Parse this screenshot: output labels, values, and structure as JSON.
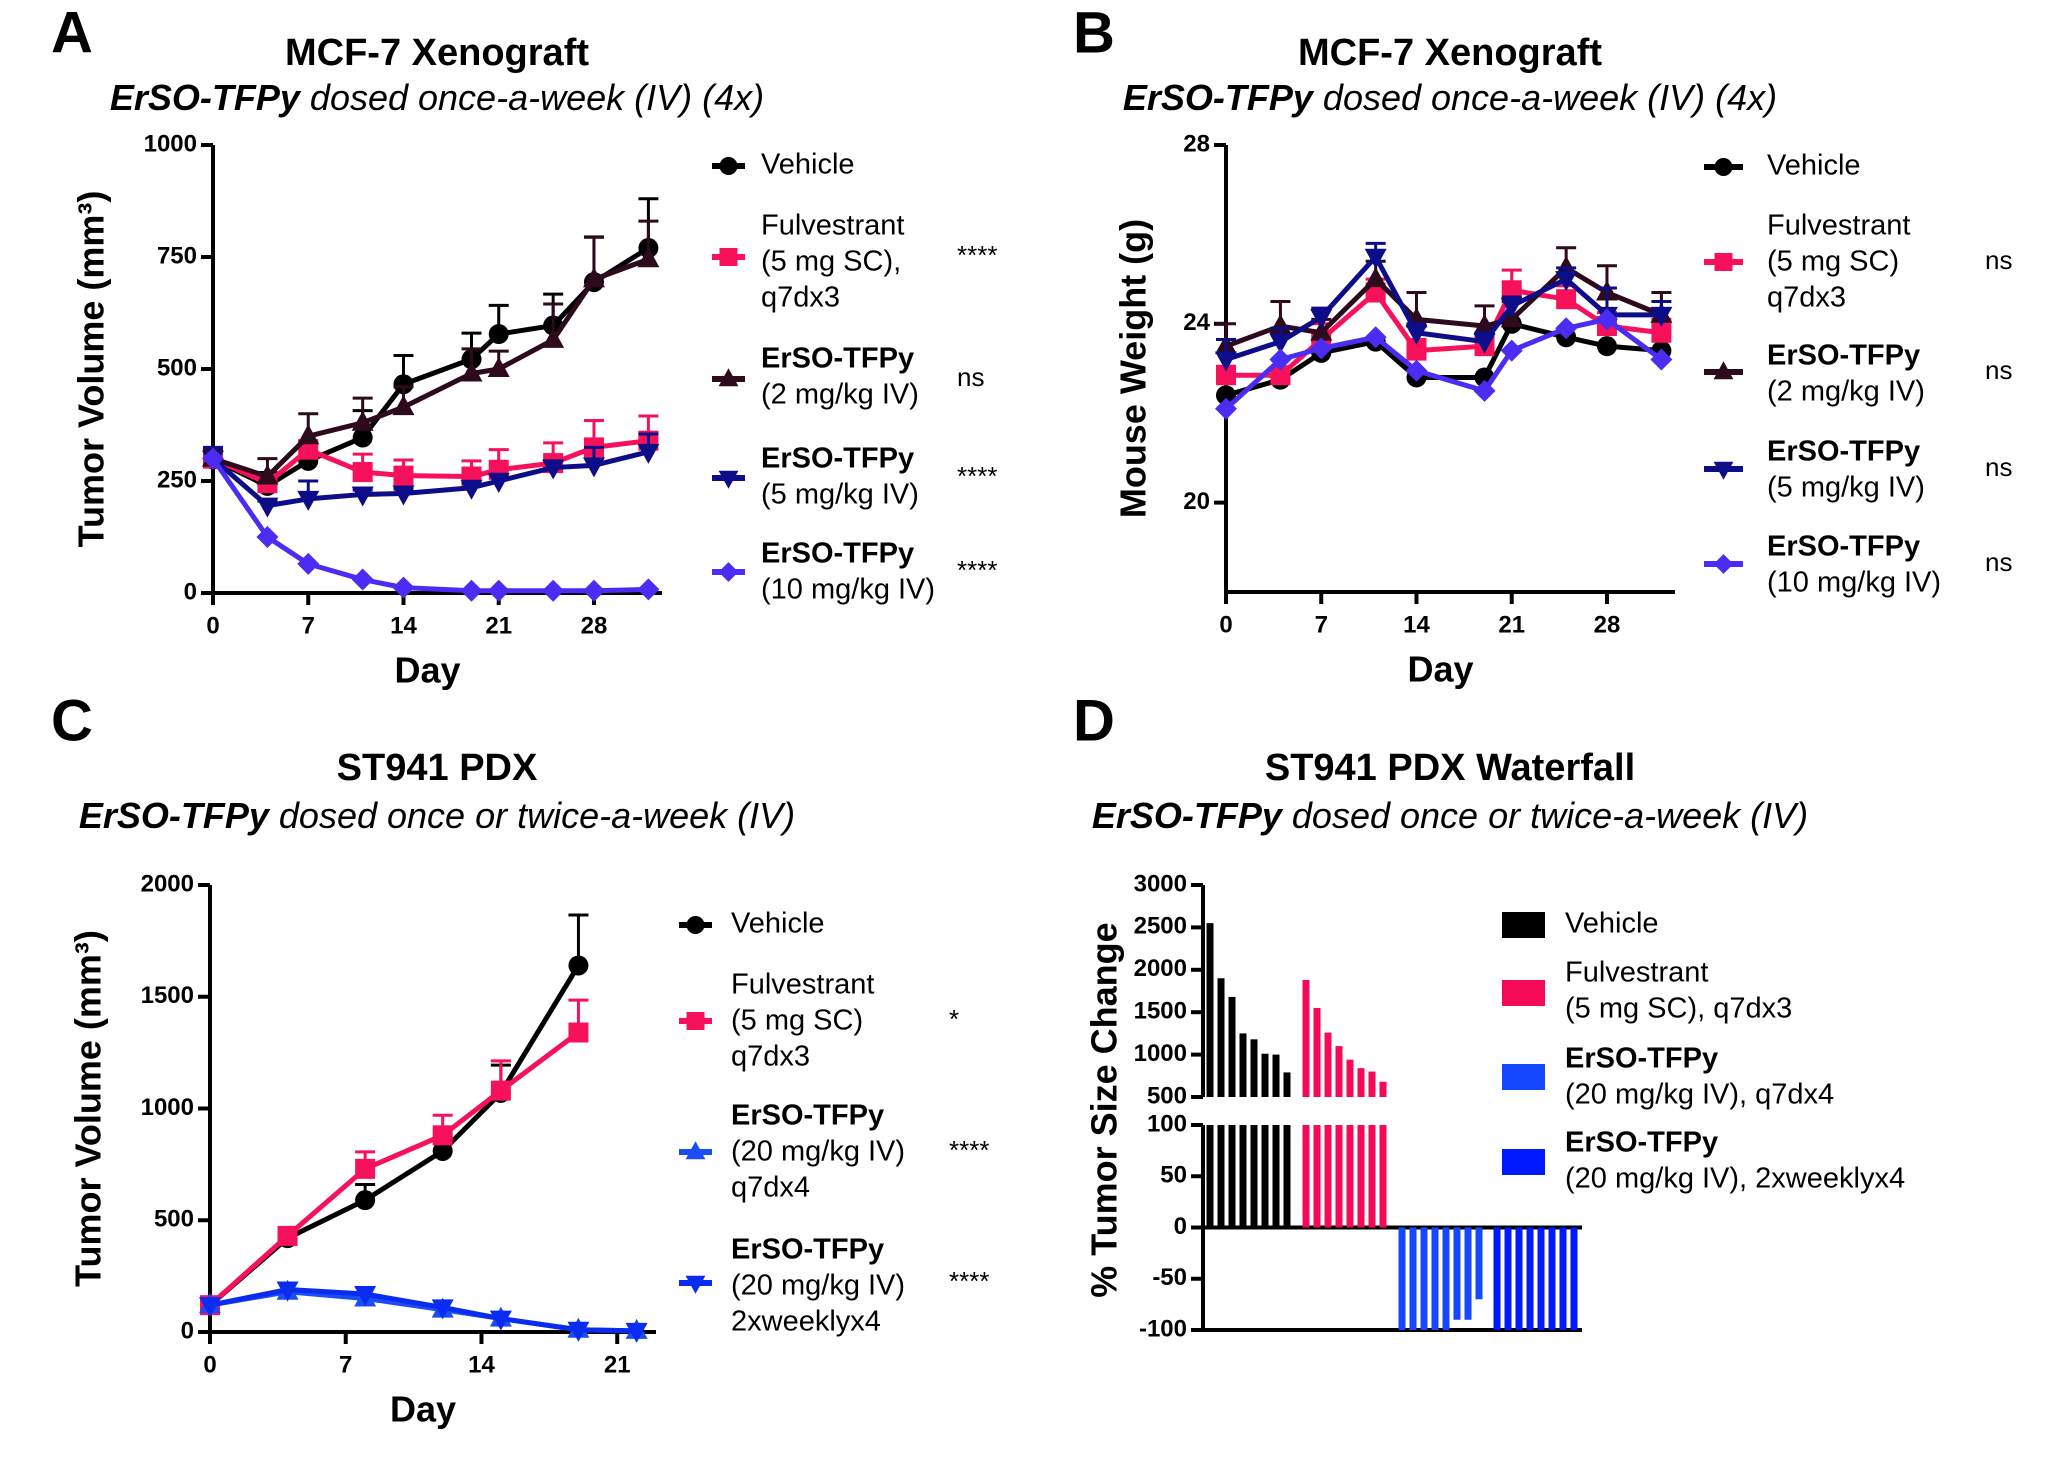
{
  "chart_data": [
    {
      "panel_label": "A",
      "type": "line",
      "title": "MCF-7 Xenograft",
      "subtitle_bold": "ErSO-TFPy",
      "subtitle_rest": " dosed once-a-week (IV) (4x)",
      "xlabel": "Day",
      "ylabel": "Tumor Volume (mm³)",
      "xlim": [
        0,
        33
      ],
      "ylim": [
        0,
        1000
      ],
      "xticks": [
        0,
        7,
        14,
        21,
        28
      ],
      "yticks": [
        0,
        250,
        500,
        750,
        1000
      ],
      "grid": false,
      "legend_position": "right",
      "x": [
        0,
        4,
        7,
        11,
        14,
        19,
        21,
        25,
        28,
        32
      ],
      "series": [
        {
          "name_lines": [
            "Vehicle"
          ],
          "bold_first": false,
          "marker": "circle",
          "color": "#000000",
          "significance": "",
          "values": [
            298,
            239,
            295,
            347,
            466,
            522,
            578,
            597,
            694,
            770
          ],
          "err": [
            15,
            30,
            40,
            60,
            64,
            58,
            64,
            70,
            100,
            110
          ]
        },
        {
          "name_lines": [
            "Fulvestrant",
            "(5 mg SC),",
            "q7dx3"
          ],
          "bold_first": false,
          "marker": "square",
          "color": "#f7115a",
          "significance": "****",
          "values": [
            300,
            245,
            320,
            270,
            262,
            260,
            275,
            290,
            325,
            340
          ],
          "err": [
            10,
            10,
            20,
            40,
            35,
            35,
            45,
            45,
            60,
            55
          ]
        },
        {
          "name_lines": [
            "ErSO-TFPy",
            "(2 mg/kg IV)"
          ],
          "bold_first": true,
          "marker": "triangle-up",
          "color": "#2d0a1c",
          "significance": "ns",
          "values": [
            300,
            260,
            350,
            380,
            415,
            490,
            500,
            565,
            700,
            745
          ],
          "err": [
            20,
            40,
            50,
            55,
            45,
            55,
            40,
            80,
            95,
            85
          ]
        },
        {
          "name_lines": [
            "ErSO-TFPy",
            "(5 mg/kg IV)"
          ],
          "bold_first": true,
          "marker": "triangle-down",
          "color": "#0d0d8a",
          "significance": "****",
          "values": [
            300,
            195,
            210,
            220,
            222,
            235,
            250,
            280,
            285,
            315
          ],
          "err": [
            25,
            10,
            40,
            10,
            10,
            10,
            15,
            15,
            40,
            40
          ]
        },
        {
          "name_lines": [
            "ErSO-TFPy",
            "(10 mg/kg IV)"
          ],
          "bold_first": true,
          "marker": "diamond",
          "color": "#4a2cf2",
          "significance": "****",
          "values": [
            300,
            125,
            65,
            30,
            12,
            5,
            5,
            5,
            5,
            8
          ]
        }
      ]
    },
    {
      "panel_label": "B",
      "type": "line",
      "title": "MCF-7 Xenograft",
      "subtitle_bold": "ErSO-TFPy",
      "subtitle_rest": " dosed once-a-week (IV) (4x)",
      "xlabel": "Day",
      "ylabel": "Mouse Weight (g)",
      "xlim": [
        0,
        33
      ],
      "ylim": [
        18,
        28
      ],
      "xticks": [
        0,
        7,
        14,
        21,
        28
      ],
      "yticks": [
        20,
        24,
        28
      ],
      "grid": false,
      "legend_position": "right",
      "x": [
        0,
        4,
        7,
        11,
        14,
        19,
        21,
        25,
        28,
        32
      ],
      "series": [
        {
          "name_lines": [
            "Vehicle"
          ],
          "bold_first": false,
          "marker": "circle",
          "color": "#000000",
          "significance": "",
          "values": [
            22.4,
            22.75,
            23.35,
            23.6,
            22.8,
            22.8,
            24.0,
            23.7,
            23.5,
            23.4
          ]
        },
        {
          "name_lines": [
            "Fulvestrant",
            "(5 mg SC)",
            "q7dx3"
          ],
          "bold_first": false,
          "marker": "square",
          "color": "#f7115a",
          "significance": "ns",
          "values": [
            22.85,
            22.85,
            23.65,
            24.7,
            23.4,
            23.5,
            24.75,
            24.55,
            23.95,
            23.8
          ],
          "err": [
            0.2,
            0.1,
            0.35,
            0.3,
            0.25,
            0.2,
            0.45,
            0.3,
            0.3,
            0.3
          ]
        },
        {
          "name_lines": [
            "ErSO-TFPy",
            "(2 mg/kg IV)"
          ],
          "bold_first": true,
          "marker": "triangle-up",
          "color": "#2d0a1c",
          "significance": "ns",
          "values": [
            23.5,
            23.95,
            23.8,
            25.0,
            24.1,
            23.95,
            24.1,
            25.25,
            24.7,
            24.2
          ],
          "err": [
            0.5,
            0.55,
            0.3,
            0.4,
            0.6,
            0.45,
            0.4,
            0.45,
            0.6,
            0.5
          ]
        },
        {
          "name_lines": [
            "ErSO-TFPy",
            "(5 mg/kg IV)"
          ],
          "bold_first": true,
          "marker": "triangle-down",
          "color": "#0d0d8a",
          "significance": "ns",
          "values": [
            23.2,
            23.6,
            24.15,
            25.5,
            23.8,
            23.6,
            24.4,
            25.0,
            24.2,
            24.2
          ],
          "err": [
            0.45,
            0.3,
            0.2,
            0.3,
            0.2,
            0.2,
            0.2,
            0.25,
            0.6,
            0.3
          ]
        },
        {
          "name_lines": [
            "ErSO-TFPy",
            "(10 mg/kg IV)"
          ],
          "bold_first": true,
          "marker": "diamond",
          "color": "#4a2cf2",
          "significance": "ns",
          "values": [
            22.1,
            23.2,
            23.45,
            23.7,
            22.95,
            22.5,
            23.4,
            23.9,
            24.1,
            23.2
          ]
        }
      ]
    },
    {
      "panel_label": "C",
      "type": "line",
      "title": "ST941 PDX",
      "subtitle_bold": "ErSO-TFPy",
      "subtitle_rest": " dosed once or twice-a-week (IV)",
      "xlabel": "Day",
      "ylabel": "Tumor Volume (mm³)",
      "xlim": [
        0,
        23
      ],
      "ylim": [
        0,
        2000
      ],
      "xticks": [
        0,
        7,
        14,
        21
      ],
      "yticks": [
        0,
        500,
        1000,
        1500,
        2000
      ],
      "grid": false,
      "legend_position": "right",
      "series": [
        {
          "name_lines": [
            "Vehicle"
          ],
          "bold_first": false,
          "marker": "circle",
          "color": "#000000",
          "significance": "",
          "x": [
            0,
            4,
            8,
            12,
            15,
            19
          ],
          "values": [
            120,
            420,
            590,
            810,
            1070,
            1640
          ],
          "err": [
            10,
            20,
            70,
            50,
            124,
            226
          ]
        },
        {
          "name_lines": [
            "Fulvestrant",
            "(5 mg SC)",
            "q7dx3"
          ],
          "bold_first": false,
          "marker": "square",
          "color": "#f7115a",
          "significance": "*",
          "x": [
            0,
            4,
            8,
            12,
            15,
            19
          ],
          "values": [
            120,
            430,
            730,
            880,
            1080,
            1340
          ],
          "err": [
            10,
            20,
            76,
            90,
            133,
            145
          ]
        },
        {
          "name_lines": [
            "ErSO-TFPy",
            "(20 mg/kg IV)",
            "q7dx4"
          ],
          "bold_first": true,
          "marker": "triangle-up",
          "color": "#1b4cf5",
          "significance": "****",
          "x": [
            0,
            4,
            8,
            12,
            15,
            19,
            22
          ],
          "values": [
            120,
            180,
            150,
            100,
            60,
            10,
            5
          ]
        },
        {
          "name_lines": [
            "ErSO-TFPy",
            "(20 mg/kg IV)",
            "2xweeklyx4"
          ],
          "bold_first": true,
          "marker": "triangle-down",
          "color": "#0a2cf0",
          "significance": "****",
          "x": [
            0,
            4,
            8,
            12,
            15,
            19,
            22
          ],
          "values": [
            120,
            190,
            170,
            110,
            60,
            10,
            5
          ]
        }
      ]
    },
    {
      "panel_label": "D",
      "type": "bar",
      "title": "ST941 PDX Waterfall",
      "subtitle_bold": "ErSO-TFPy",
      "subtitle_rest": " dosed once or twice-a-week (IV)",
      "xlabel": "",
      "ylabel": "% Tumor Size Change",
      "ylim": [
        -100,
        3000
      ],
      "y_axis_break": [
        100,
        500
      ],
      "yticks_lower": [
        -100,
        -50,
        0,
        50,
        100
      ],
      "yticks_upper": [
        500,
        1000,
        1500,
        2000,
        2500,
        3000
      ],
      "grid": false,
      "legend_position": "right",
      "series": [
        {
          "name_lines": [
            "Vehicle"
          ],
          "bold_first": false,
          "color": "#000000",
          "values": [
            2550,
            1900,
            1680,
            1250,
            1180,
            1010,
            1000,
            790
          ]
        },
        {
          "name_lines": [
            "Fulvestrant",
            "(5 mg SC), q7dx3"
          ],
          "bold_first": false,
          "color": "#f50a55",
          "values": [
            1880,
            1550,
            1260,
            1100,
            940,
            840,
            800,
            680
          ]
        },
        {
          "name_lines": [
            "ErSO-TFPy",
            "(20 mg/kg IV), q7dx4"
          ],
          "bold_first": true,
          "color": "#1447ff",
          "values": [
            -100,
            -100,
            -100,
            -100,
            -100,
            -90,
            -90,
            -70
          ]
        },
        {
          "name_lines": [
            "ErSO-TFPy",
            "(20 mg/kg IV), 2xweeklyx4"
          ],
          "bold_first": true,
          "color": "#0019ff",
          "values": [
            -100,
            -100,
            -100,
            -100,
            -100,
            -100,
            -100,
            -100
          ]
        }
      ]
    }
  ]
}
